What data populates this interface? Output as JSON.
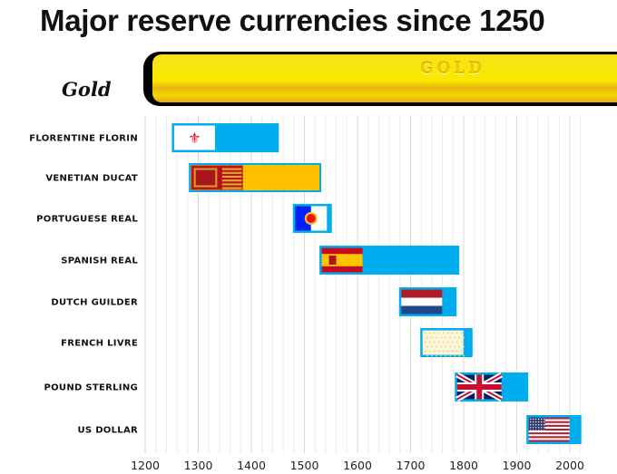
{
  "title": "Major reserve currencies since 1250",
  "header_image": {
    "label": "Gold",
    "engraving": "GOLD"
  },
  "chart_data": {
    "type": "bar",
    "orientation": "horizontal-range",
    "title": "Major reserve currencies since 1250",
    "xlabel": "",
    "ylabel": "",
    "xlim": [
      1200,
      2020
    ],
    "xticks": [
      1200,
      1300,
      1400,
      1500,
      1600,
      1700,
      1800,
      1900,
      2000
    ],
    "grid": true,
    "bar_color": "#00aeef",
    "categories": [
      "FLORENTINE FLORIN",
      "VENETIAN DUCAT",
      "PORTUGUESE REAL",
      "SPANISH REAL",
      "DUTCH GUILDER",
      "FRENCH LIVRE",
      "POUND STERLING",
      "US DOLLAR"
    ],
    "series": [
      {
        "name": "Florentine florin",
        "flag": "florence",
        "start": 1252,
        "end": 1450,
        "color": "#00aeef"
      },
      {
        "name": "Venetian ducat",
        "flag": "venice",
        "start": 1284,
        "end": 1530,
        "color": "#ffc000"
      },
      {
        "name": "Portuguese real",
        "flag": "portugal",
        "start": 1480,
        "end": 1550,
        "color": "#00aeef"
      },
      {
        "name": "Spanish real",
        "flag": "spain",
        "start": 1530,
        "end": 1790,
        "color": "#00aeef"
      },
      {
        "name": "Dutch guilder",
        "flag": "netherlands",
        "start": 1680,
        "end": 1785,
        "color": "#00aeef"
      },
      {
        "name": "French livre",
        "flag": "france",
        "start": 1720,
        "end": 1815,
        "color": "#00aeef"
      },
      {
        "name": "Pound sterling",
        "flag": "uk",
        "start": 1785,
        "end": 1920,
        "color": "#00aeef"
      },
      {
        "name": "US dollar",
        "flag": "usa",
        "start": 1920,
        "end": 2020,
        "color": "#00aeef"
      }
    ]
  }
}
